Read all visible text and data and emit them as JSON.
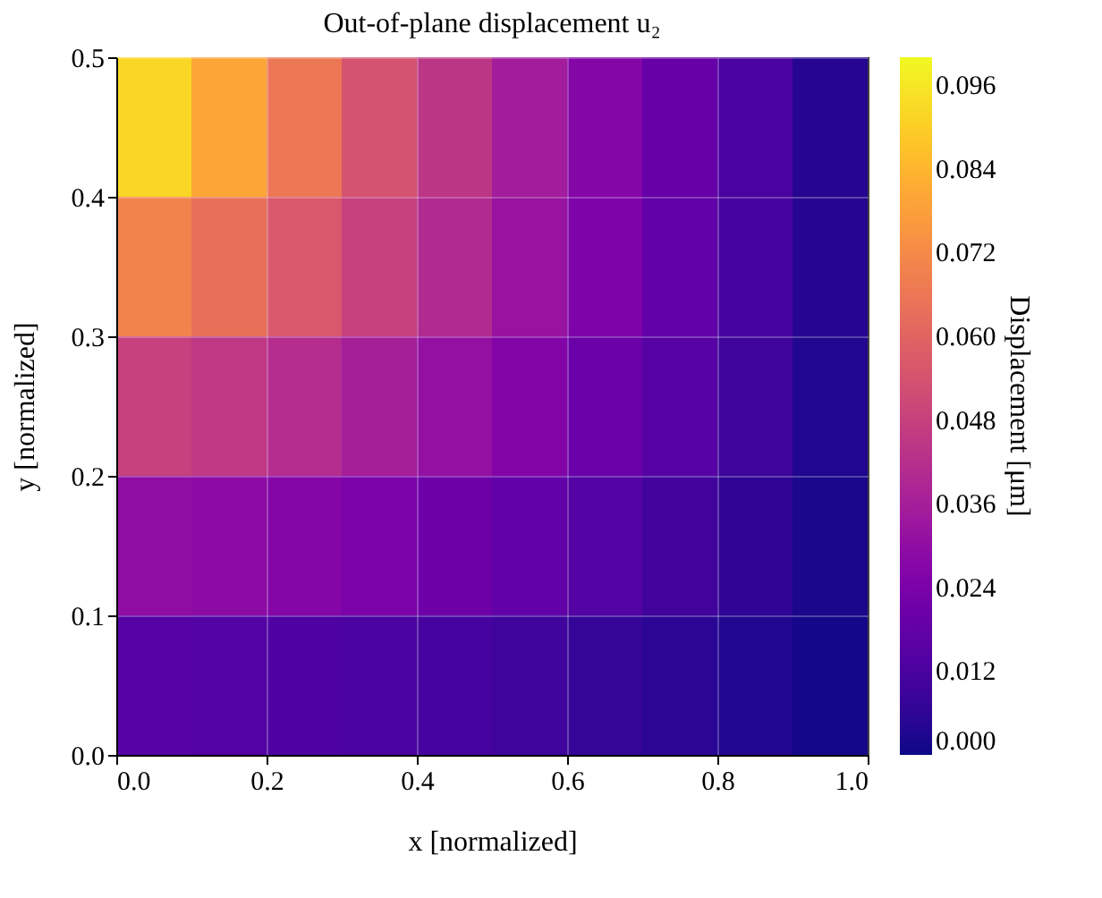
{
  "chart_data": {
    "type": "heatmap",
    "title": "Out-of-plane displacement u₂",
    "xlabel": "x [normalized]",
    "ylabel": "y [normalized]",
    "clabel": "Displacement [μm]",
    "xlim": [
      0,
      1
    ],
    "ylim": [
      0,
      0.5
    ],
    "xticks": [
      {
        "value": 0,
        "label": "0.0"
      },
      {
        "value": 0.2,
        "label": "0.2"
      },
      {
        "value": 0.4,
        "label": "0.4"
      },
      {
        "value": 0.6,
        "label": "0.6"
      },
      {
        "value": 0.8,
        "label": "0.8"
      },
      {
        "value": 1,
        "label": "1.0"
      }
    ],
    "yticks": [
      {
        "value": 0,
        "label": "0.0"
      },
      {
        "value": 0.1,
        "label": "0.1"
      },
      {
        "value": 0.2,
        "label": "0.2"
      },
      {
        "value": 0.3,
        "label": "0.3"
      },
      {
        "value": 0.4,
        "label": "0.4"
      },
      {
        "value": 0.5,
        "label": "0.5"
      }
    ],
    "clim": [
      0,
      0.1
    ],
    "cticks": [
      {
        "value": 0,
        "label": "0.000"
      },
      {
        "value": 0.012,
        "label": "0.012"
      },
      {
        "value": 0.024,
        "label": "0.024"
      },
      {
        "value": 0.036,
        "label": "0.036"
      },
      {
        "value": 0.048,
        "label": "0.048"
      },
      {
        "value": 0.06,
        "label": "0.060"
      },
      {
        "value": 0.072,
        "label": "0.072"
      },
      {
        "value": 0.084,
        "label": "0.084"
      },
      {
        "value": 0.096,
        "label": "0.096"
      }
    ],
    "grid": true,
    "cells": [
      [
        0.092,
        0.08,
        0.066,
        0.054,
        0.044,
        0.035,
        0.027,
        0.019,
        0.012,
        0.004
      ],
      [
        0.07,
        0.064,
        0.056,
        0.048,
        0.04,
        0.032,
        0.025,
        0.018,
        0.011,
        0.004
      ],
      [
        0.048,
        0.045,
        0.041,
        0.036,
        0.031,
        0.026,
        0.02,
        0.015,
        0.009,
        0.003
      ],
      [
        0.03,
        0.029,
        0.027,
        0.024,
        0.021,
        0.018,
        0.014,
        0.01,
        0.006,
        0.002
      ],
      [
        0.015,
        0.014,
        0.013,
        0.012,
        0.011,
        0.009,
        0.007,
        0.005,
        0.003,
        0.001
      ]
    ]
  }
}
